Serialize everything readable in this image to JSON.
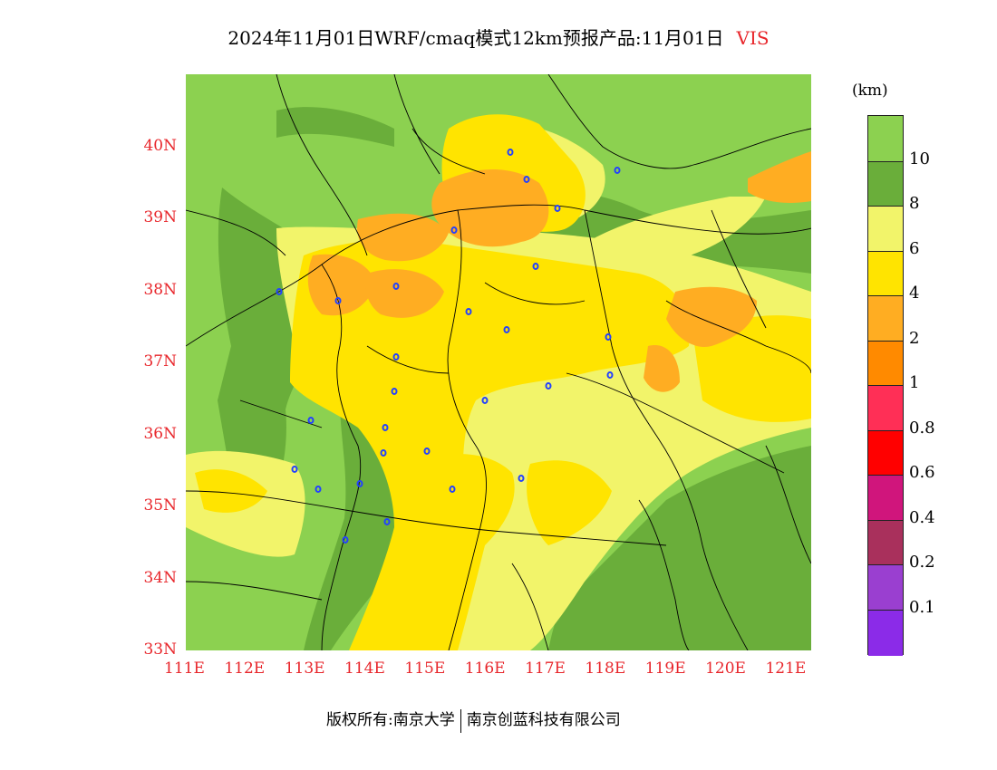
{
  "title": {
    "text": "2024年11月01日WRF/cmaq模式12km预报产品:11月01日",
    "variable": "VIS"
  },
  "map": {
    "lat_labels": [
      "40N",
      "39N",
      "38N",
      "37N",
      "36N",
      "35N",
      "34N",
      "33N"
    ],
    "lon_labels": [
      "111E",
      "112E",
      "113E",
      "114E",
      "115E",
      "116E",
      "117E",
      "118E",
      "119E",
      "120E",
      "121E"
    ],
    "lat_range": [
      33,
      41
    ],
    "lon_range": [
      111,
      121.4
    ],
    "colors": {
      "gt10": "#8cd150",
      "8_10": "#6aae3a",
      "6_8": "#f2f46a",
      "4_6": "#ffe400",
      "2_4": "#ffad22",
      "1_2": "#ff8a00",
      "border": "#000000",
      "city_marker": "#2341ff"
    }
  },
  "legend": {
    "unit": "(km)",
    "labels": [
      "10",
      "8",
      "6",
      "4",
      "2",
      "1",
      "0.8",
      "0.6",
      "0.4",
      "0.2",
      "0.1"
    ],
    "colors": [
      "#8cd150",
      "#6aae3a",
      "#f2f46a",
      "#ffe400",
      "#ffad22",
      "#ff8a00",
      "#ff2f56",
      "#ff0000",
      "#d0157c",
      "#a9305c",
      "#9a3fd0",
      "#8b2be8"
    ]
  },
  "footer": {
    "left": "版权所有:南京大学",
    "right": "南京创蓝科技有限公司"
  }
}
